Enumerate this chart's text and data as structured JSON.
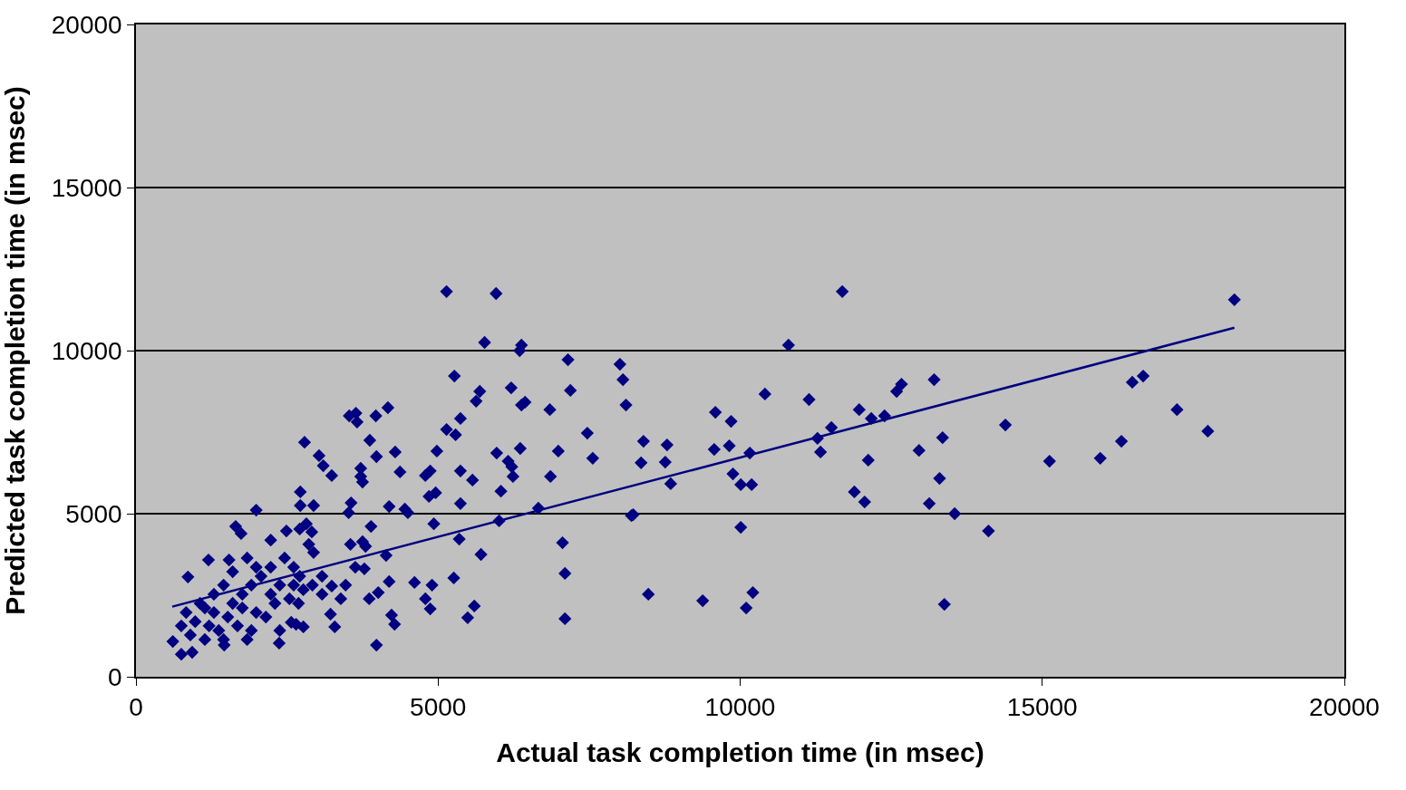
{
  "chart_data": {
    "type": "scatter",
    "xlabel": "Actual task completion time (in msec)",
    "ylabel": "Predicted task completion time (in msec)",
    "xlim": [
      0,
      20000
    ],
    "xticks": [
      0,
      5000,
      10000,
      15000,
      20000
    ],
    "ylim": [
      0,
      20000
    ],
    "yticks": [
      0,
      5000,
      10000,
      15000,
      20000
    ],
    "grid": "y",
    "marker": "diamond",
    "series": [
      {
        "color": "#000080",
        "x": [
          18180,
          17740,
          17230,
          16670,
          16490,
          16310,
          15960,
          15120,
          14390,
          14110,
          13550,
          13380,
          13350,
          13300,
          13210,
          13130,
          12960,
          12670,
          12590,
          12390,
          12170,
          12120,
          12060,
          11970,
          11890,
          11690,
          11510,
          11330,
          11280,
          11140,
          10800,
          10410,
          10210,
          10190,
          10160,
          10100,
          10010,
          10010,
          9880,
          9850,
          9820,
          9590,
          9570,
          9380,
          8850,
          8790,
          8760,
          8480,
          8400,
          8360,
          8230,
          8200,
          8110,
          8060,
          8010,
          7560,
          7470,
          7190,
          7150,
          7100,
          7060,
          7100,
          6990,
          6860,
          6850,
          6660,
          6440,
          6380,
          6380,
          6360,
          6350,
          6240,
          6220,
          6210,
          6160,
          6040,
          6010,
          5960,
          5970,
          5770,
          5690,
          5630,
          5570,
          5600,
          5490,
          5350,
          5710,
          5370,
          5370,
          5370,
          5290,
          5270,
          5260,
          5140,
          5140,
          4980,
          4960,
          4870,
          4930,
          4850,
          4790,
          4900,
          4870,
          4790,
          4610,
          4500,
          4450,
          4370,
          4290,
          4280,
          4230,
          4190,
          4170,
          4140,
          4190,
          4010,
          3980,
          3970,
          3980,
          3870,
          3860,
          3890,
          3750,
          3660,
          3640,
          3530,
          3720,
          3720,
          3750,
          3800,
          3560,
          3550,
          3520,
          3240,
          3240,
          3100,
          3030,
          3220,
          3290,
          2790,
          2940,
          2910,
          2720,
          2720,
          2710,
          2820,
          2940,
          2860,
          2710,
          2650,
          2770,
          2570,
          2370,
          2490,
          2230,
          1990,
          1650,
          1740,
          1540,
          1200,
          860,
          610,
          750,
          930,
          1460,
          980,
          1140,
          1290,
          1450,
          1600,
          1760,
          1910,
          2070,
          2230,
          2380,
          2460,
          2300,
          2150,
          1910,
          1680,
          1370,
          1140,
          900,
          1060,
          830,
          1600,
          1840,
          1990,
          2540,
          2610,
          2690,
          2770,
          2920,
          3080,
          3470,
          3630,
          3390,
          3780,
          1290,
          1520,
          1760,
          2230,
          750,
          1210,
          1450,
          1840,
          1990,
          2380,
          2610,
          3080
        ],
        "values": [
          11560,
          7530,
          8190,
          9220,
          9030,
          7220,
          6700,
          6610,
          7720,
          4470,
          5000,
          2220,
          7330,
          6080,
          9110,
          5310,
          6940,
          8970,
          8750,
          8000,
          7920,
          6640,
          5360,
          8190,
          5670,
          11810,
          7640,
          6890,
          7310,
          8500,
          10170,
          8670,
          2580,
          5890,
          6860,
          2110,
          4580,
          5890,
          6220,
          7830,
          7080,
          8110,
          6970,
          2330,
          5920,
          7110,
          6580,
          2530,
          7220,
          6560,
          4970,
          4940,
          8330,
          9110,
          9580,
          6700,
          7470,
          8780,
          9720,
          3170,
          4110,
          1780,
          6920,
          6140,
          8190,
          5170,
          8420,
          8330,
          10170,
          7000,
          10000,
          6140,
          6440,
          8860,
          6610,
          5690,
          4780,
          11750,
          6860,
          10250,
          8750,
          8450,
          6030,
          2170,
          1810,
          4220,
          3750,
          6310,
          5310,
          7920,
          7420,
          9220,
          3030,
          11810,
          7580,
          6920,
          5640,
          6310,
          4690,
          5530,
          6170,
          2810,
          2080,
          2390,
          2890,
          5030,
          5140,
          6280,
          6890,
          1610,
          1890,
          5220,
          8250,
          3720,
          2920,
          2580,
          970,
          8000,
          6750,
          7250,
          2390,
          4610,
          4140,
          7810,
          8080,
          8000,
          6390,
          6140,
          5970,
          4000,
          5330,
          4060,
          5030,
          2780,
          6170,
          6470,
          6780,
          1920,
          1530,
          7190,
          5250,
          4440,
          5670,
          5250,
          4530,
          4690,
          3810,
          4060,
          3080,
          1610,
          1530,
          1670,
          1030,
          4470,
          4190,
          5110,
          4610,
          4390,
          3580,
          3580,
          3060,
          1080,
          690,
          750,
          970,
          1690,
          2110,
          2530,
          2810,
          2250,
          2530,
          2810,
          3080,
          3360,
          2810,
          3640,
          2250,
          1830,
          1420,
          1560,
          1420,
          1140,
          1280,
          2250,
          1970,
          3220,
          3640,
          3360,
          2390,
          2810,
          2250,
          2670,
          2810,
          2530,
          2810,
          3360,
          2390,
          3310,
          1970,
          1830,
          2110,
          2530,
          1560,
          1560,
          1140,
          1140,
          1970,
          1420,
          3360,
          3080
        ]
      },
      {
        "type": "line",
        "color": "#000080",
        "line_style": "solid",
        "marker": "none",
        "x": [
          600,
          18180
        ],
        "values": [
          2150,
          10700
        ]
      }
    ]
  }
}
